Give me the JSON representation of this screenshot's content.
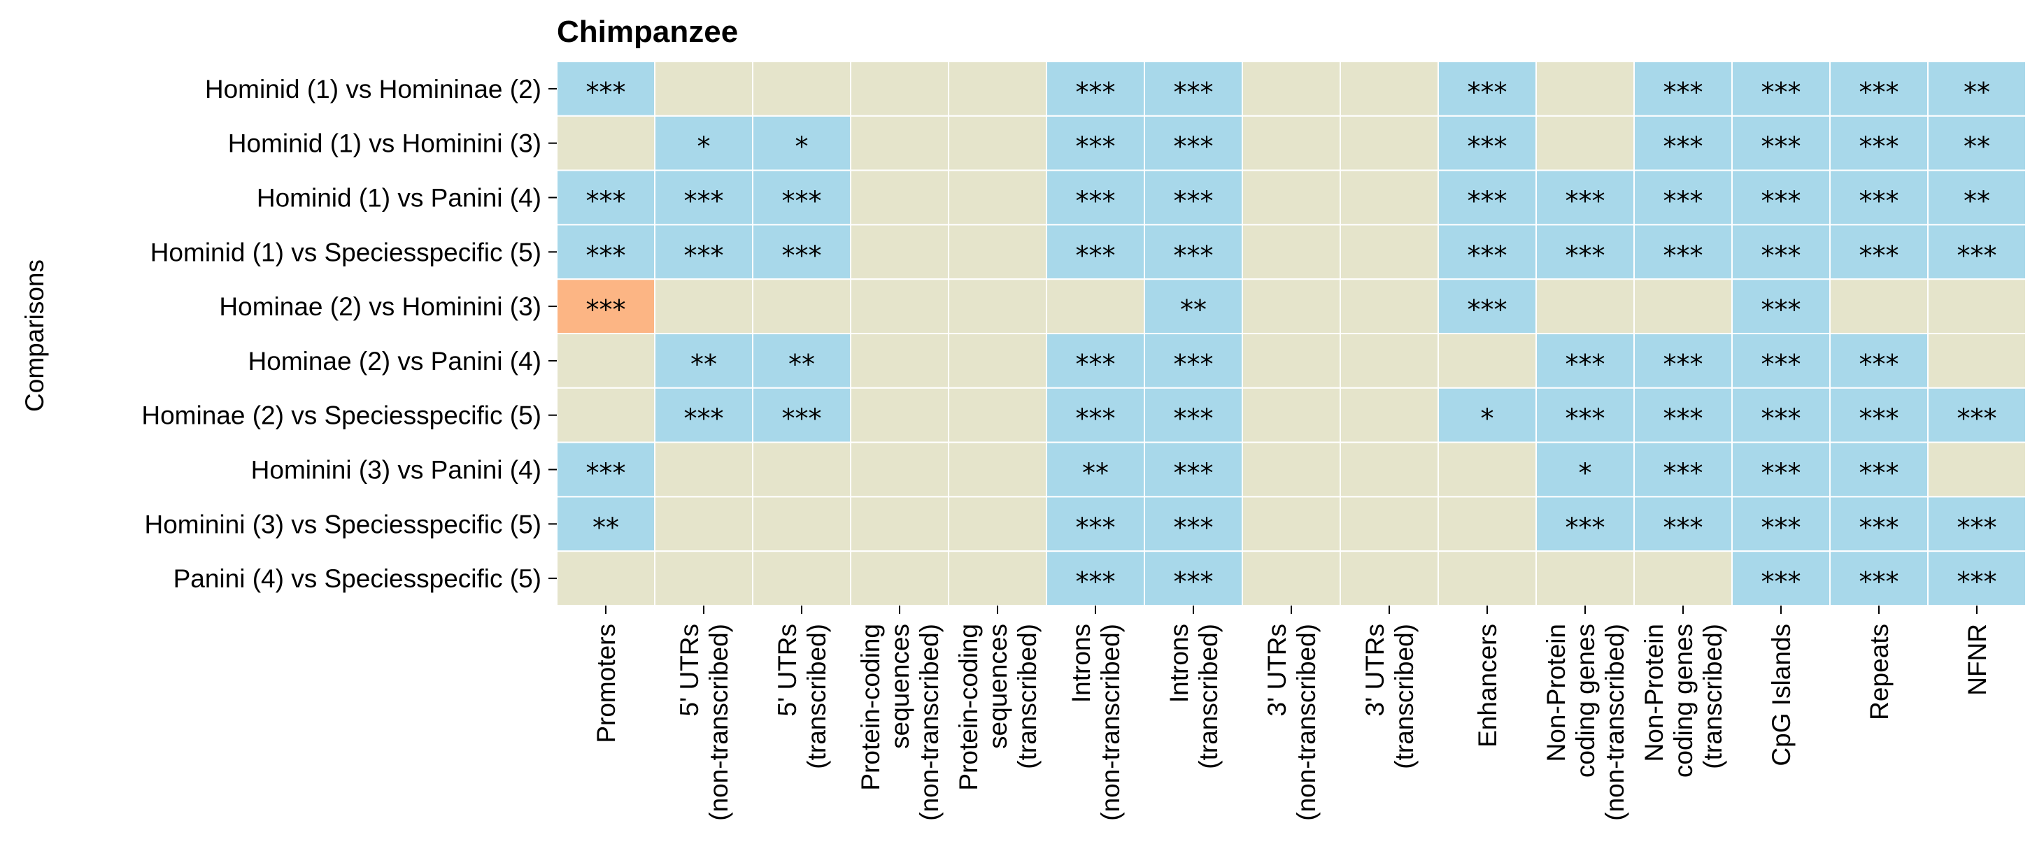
{
  "chart_data": {
    "type": "heatmap",
    "title": "Chimpanzee",
    "ylabel": "Comparisons",
    "xlabel": "",
    "rows": [
      "Hominid (1) vs Homininae (2)",
      "Hominid (1) vs Hominini (3)",
      "Hominid (1) vs Panini (4)",
      "Hominid (1) vs Speciesspecific (5)",
      "Hominae (2) vs Hominini (3)",
      "Hominae (2) vs Panini (4)",
      "Hominae (2) vs Speciesspecific (5)",
      "Hominini (3) vs Panini (4)",
      "Hominini (3) vs Speciesspecific (5)",
      "Panini (4) vs Speciesspecific (5)"
    ],
    "columns": [
      [
        "Promoters"
      ],
      [
        "5' UTRs",
        "(non-transcribed)"
      ],
      [
        "5' UTRs",
        "(transcribed)"
      ],
      [
        "Protein-coding",
        "sequences",
        "(non-transcribed)"
      ],
      [
        "Protein-coding",
        "sequences",
        "(transcribed)"
      ],
      [
        "Introns",
        "(non-transcribed)"
      ],
      [
        "Introns",
        "(transcribed)"
      ],
      [
        "3' UTRs",
        "(non-transcribed)"
      ],
      [
        "3' UTRs",
        "(transcribed)"
      ],
      [
        "Enhancers"
      ],
      [
        "Non-Protein",
        "coding genes",
        "(non-transcribed)"
      ],
      [
        "Non-Protein",
        "coding genes",
        "(transcribed)"
      ],
      [
        "CpG Islands"
      ],
      [
        "Repeats"
      ],
      [
        "NFNR"
      ]
    ],
    "colors": {
      "blue": "#a8d8ea",
      "orange": "#fcb584",
      "beige": "#e5e4cb",
      "gridline": "#ffffff"
    },
    "cell_colors": [
      [
        "blue",
        "beige",
        "beige",
        "beige",
        "beige",
        "blue",
        "blue",
        "beige",
        "beige",
        "blue",
        "beige",
        "blue",
        "blue",
        "blue",
        "blue"
      ],
      [
        "beige",
        "blue",
        "blue",
        "beige",
        "beige",
        "blue",
        "blue",
        "beige",
        "beige",
        "blue",
        "beige",
        "blue",
        "blue",
        "blue",
        "blue"
      ],
      [
        "blue",
        "blue",
        "blue",
        "beige",
        "beige",
        "blue",
        "blue",
        "beige",
        "beige",
        "blue",
        "blue",
        "blue",
        "blue",
        "blue",
        "blue"
      ],
      [
        "blue",
        "blue",
        "blue",
        "beige",
        "beige",
        "blue",
        "blue",
        "beige",
        "beige",
        "blue",
        "blue",
        "blue",
        "blue",
        "blue",
        "blue"
      ],
      [
        "orange",
        "beige",
        "beige",
        "beige",
        "beige",
        "beige",
        "blue",
        "beige",
        "beige",
        "blue",
        "beige",
        "beige",
        "blue",
        "beige",
        "beige"
      ],
      [
        "beige",
        "blue",
        "blue",
        "beige",
        "beige",
        "blue",
        "blue",
        "beige",
        "beige",
        "beige",
        "blue",
        "blue",
        "blue",
        "blue",
        "beige"
      ],
      [
        "beige",
        "blue",
        "blue",
        "beige",
        "beige",
        "blue",
        "blue",
        "beige",
        "beige",
        "blue",
        "blue",
        "blue",
        "blue",
        "blue",
        "blue"
      ],
      [
        "blue",
        "beige",
        "beige",
        "beige",
        "beige",
        "blue",
        "blue",
        "beige",
        "beige",
        "beige",
        "blue",
        "blue",
        "blue",
        "blue",
        "beige"
      ],
      [
        "blue",
        "beige",
        "beige",
        "beige",
        "beige",
        "blue",
        "blue",
        "beige",
        "beige",
        "beige",
        "blue",
        "blue",
        "blue",
        "blue",
        "blue"
      ],
      [
        "beige",
        "beige",
        "beige",
        "beige",
        "beige",
        "blue",
        "blue",
        "beige",
        "beige",
        "beige",
        "beige",
        "beige",
        "blue",
        "blue",
        "blue"
      ]
    ],
    "annotations": [
      [
        "***",
        "",
        "",
        "",
        "",
        "***",
        "***",
        "",
        "",
        "***",
        "",
        "***",
        "***",
        "***",
        "**"
      ],
      [
        "",
        "*",
        "*",
        "",
        "",
        "***",
        "***",
        "",
        "",
        "***",
        "",
        "***",
        "***",
        "***",
        "**"
      ],
      [
        "***",
        "***",
        "***",
        "",
        "",
        "***",
        "***",
        "",
        "",
        "***",
        "***",
        "***",
        "***",
        "***",
        "**"
      ],
      [
        "***",
        "***",
        "***",
        "",
        "",
        "***",
        "***",
        "",
        "",
        "***",
        "***",
        "***",
        "***",
        "***",
        "***"
      ],
      [
        "***",
        "",
        "",
        "",
        "",
        "",
        "**",
        "",
        "",
        "***",
        "",
        "",
        "***",
        "",
        ""
      ],
      [
        "",
        "**",
        "**",
        "",
        "",
        "***",
        "***",
        "",
        "",
        "",
        "***",
        "***",
        "***",
        "***",
        ""
      ],
      [
        "",
        "***",
        "***",
        "",
        "",
        "***",
        "***",
        "",
        "",
        "*",
        "***",
        "***",
        "***",
        "***",
        "***"
      ],
      [
        "***",
        "",
        "",
        "",
        "",
        "**",
        "***",
        "",
        "",
        "",
        "*",
        "***",
        "***",
        "***",
        ""
      ],
      [
        "**",
        "",
        "",
        "",
        "",
        "***",
        "***",
        "",
        "",
        "",
        "***",
        "***",
        "***",
        "***",
        "***"
      ],
      [
        "",
        "",
        "",
        "",
        "",
        "***",
        "***",
        "",
        "",
        "",
        "",
        "",
        "***",
        "***",
        "***"
      ]
    ]
  }
}
